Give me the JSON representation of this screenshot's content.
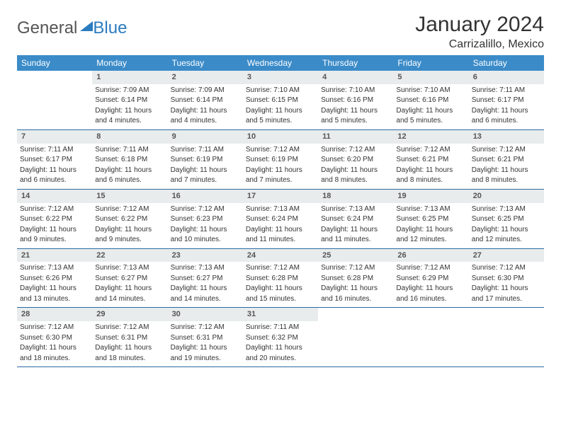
{
  "colors": {
    "header_bg": "#3b8bc8",
    "header_text": "#ffffff",
    "daynum_bg": "#e9eced",
    "daynum_text": "#555555",
    "border": "#2b6aa3",
    "body_text": "#333333",
    "accent": "#2b7bbf"
  },
  "typography": {
    "title_fontsize": 30,
    "location_fontsize": 16,
    "weekday_fontsize": 12,
    "daynum_fontsize": 11,
    "body_fontsize": 10
  },
  "logo": {
    "text1": "General",
    "text2": "Blue"
  },
  "title": "January 2024",
  "location": "Carrizalillo, Mexico",
  "weekdays": [
    "Sunday",
    "Monday",
    "Tuesday",
    "Wednesday",
    "Thursday",
    "Friday",
    "Saturday"
  ],
  "weeks": [
    [
      {
        "n": "",
        "sr": "",
        "ss": "",
        "dl1": "",
        "dl2": ""
      },
      {
        "n": "1",
        "sr": "Sunrise: 7:09 AM",
        "ss": "Sunset: 6:14 PM",
        "dl1": "Daylight: 11 hours",
        "dl2": "and 4 minutes."
      },
      {
        "n": "2",
        "sr": "Sunrise: 7:09 AM",
        "ss": "Sunset: 6:14 PM",
        "dl1": "Daylight: 11 hours",
        "dl2": "and 4 minutes."
      },
      {
        "n": "3",
        "sr": "Sunrise: 7:10 AM",
        "ss": "Sunset: 6:15 PM",
        "dl1": "Daylight: 11 hours",
        "dl2": "and 5 minutes."
      },
      {
        "n": "4",
        "sr": "Sunrise: 7:10 AM",
        "ss": "Sunset: 6:16 PM",
        "dl1": "Daylight: 11 hours",
        "dl2": "and 5 minutes."
      },
      {
        "n": "5",
        "sr": "Sunrise: 7:10 AM",
        "ss": "Sunset: 6:16 PM",
        "dl1": "Daylight: 11 hours",
        "dl2": "and 5 minutes."
      },
      {
        "n": "6",
        "sr": "Sunrise: 7:11 AM",
        "ss": "Sunset: 6:17 PM",
        "dl1": "Daylight: 11 hours",
        "dl2": "and 6 minutes."
      }
    ],
    [
      {
        "n": "7",
        "sr": "Sunrise: 7:11 AM",
        "ss": "Sunset: 6:17 PM",
        "dl1": "Daylight: 11 hours",
        "dl2": "and 6 minutes."
      },
      {
        "n": "8",
        "sr": "Sunrise: 7:11 AM",
        "ss": "Sunset: 6:18 PM",
        "dl1": "Daylight: 11 hours",
        "dl2": "and 6 minutes."
      },
      {
        "n": "9",
        "sr": "Sunrise: 7:11 AM",
        "ss": "Sunset: 6:19 PM",
        "dl1": "Daylight: 11 hours",
        "dl2": "and 7 minutes."
      },
      {
        "n": "10",
        "sr": "Sunrise: 7:12 AM",
        "ss": "Sunset: 6:19 PM",
        "dl1": "Daylight: 11 hours",
        "dl2": "and 7 minutes."
      },
      {
        "n": "11",
        "sr": "Sunrise: 7:12 AM",
        "ss": "Sunset: 6:20 PM",
        "dl1": "Daylight: 11 hours",
        "dl2": "and 8 minutes."
      },
      {
        "n": "12",
        "sr": "Sunrise: 7:12 AM",
        "ss": "Sunset: 6:21 PM",
        "dl1": "Daylight: 11 hours",
        "dl2": "and 8 minutes."
      },
      {
        "n": "13",
        "sr": "Sunrise: 7:12 AM",
        "ss": "Sunset: 6:21 PM",
        "dl1": "Daylight: 11 hours",
        "dl2": "and 8 minutes."
      }
    ],
    [
      {
        "n": "14",
        "sr": "Sunrise: 7:12 AM",
        "ss": "Sunset: 6:22 PM",
        "dl1": "Daylight: 11 hours",
        "dl2": "and 9 minutes."
      },
      {
        "n": "15",
        "sr": "Sunrise: 7:12 AM",
        "ss": "Sunset: 6:22 PM",
        "dl1": "Daylight: 11 hours",
        "dl2": "and 9 minutes."
      },
      {
        "n": "16",
        "sr": "Sunrise: 7:12 AM",
        "ss": "Sunset: 6:23 PM",
        "dl1": "Daylight: 11 hours",
        "dl2": "and 10 minutes."
      },
      {
        "n": "17",
        "sr": "Sunrise: 7:13 AM",
        "ss": "Sunset: 6:24 PM",
        "dl1": "Daylight: 11 hours",
        "dl2": "and 11 minutes."
      },
      {
        "n": "18",
        "sr": "Sunrise: 7:13 AM",
        "ss": "Sunset: 6:24 PM",
        "dl1": "Daylight: 11 hours",
        "dl2": "and 11 minutes."
      },
      {
        "n": "19",
        "sr": "Sunrise: 7:13 AM",
        "ss": "Sunset: 6:25 PM",
        "dl1": "Daylight: 11 hours",
        "dl2": "and 12 minutes."
      },
      {
        "n": "20",
        "sr": "Sunrise: 7:13 AM",
        "ss": "Sunset: 6:25 PM",
        "dl1": "Daylight: 11 hours",
        "dl2": "and 12 minutes."
      }
    ],
    [
      {
        "n": "21",
        "sr": "Sunrise: 7:13 AM",
        "ss": "Sunset: 6:26 PM",
        "dl1": "Daylight: 11 hours",
        "dl2": "and 13 minutes."
      },
      {
        "n": "22",
        "sr": "Sunrise: 7:13 AM",
        "ss": "Sunset: 6:27 PM",
        "dl1": "Daylight: 11 hours",
        "dl2": "and 14 minutes."
      },
      {
        "n": "23",
        "sr": "Sunrise: 7:13 AM",
        "ss": "Sunset: 6:27 PM",
        "dl1": "Daylight: 11 hours",
        "dl2": "and 14 minutes."
      },
      {
        "n": "24",
        "sr": "Sunrise: 7:12 AM",
        "ss": "Sunset: 6:28 PM",
        "dl1": "Daylight: 11 hours",
        "dl2": "and 15 minutes."
      },
      {
        "n": "25",
        "sr": "Sunrise: 7:12 AM",
        "ss": "Sunset: 6:28 PM",
        "dl1": "Daylight: 11 hours",
        "dl2": "and 16 minutes."
      },
      {
        "n": "26",
        "sr": "Sunrise: 7:12 AM",
        "ss": "Sunset: 6:29 PM",
        "dl1": "Daylight: 11 hours",
        "dl2": "and 16 minutes."
      },
      {
        "n": "27",
        "sr": "Sunrise: 7:12 AM",
        "ss": "Sunset: 6:30 PM",
        "dl1": "Daylight: 11 hours",
        "dl2": "and 17 minutes."
      }
    ],
    [
      {
        "n": "28",
        "sr": "Sunrise: 7:12 AM",
        "ss": "Sunset: 6:30 PM",
        "dl1": "Daylight: 11 hours",
        "dl2": "and 18 minutes."
      },
      {
        "n": "29",
        "sr": "Sunrise: 7:12 AM",
        "ss": "Sunset: 6:31 PM",
        "dl1": "Daylight: 11 hours",
        "dl2": "and 18 minutes."
      },
      {
        "n": "30",
        "sr": "Sunrise: 7:12 AM",
        "ss": "Sunset: 6:31 PM",
        "dl1": "Daylight: 11 hours",
        "dl2": "and 19 minutes."
      },
      {
        "n": "31",
        "sr": "Sunrise: 7:11 AM",
        "ss": "Sunset: 6:32 PM",
        "dl1": "Daylight: 11 hours",
        "dl2": "and 20 minutes."
      },
      {
        "n": "",
        "sr": "",
        "ss": "",
        "dl1": "",
        "dl2": ""
      },
      {
        "n": "",
        "sr": "",
        "ss": "",
        "dl1": "",
        "dl2": ""
      },
      {
        "n": "",
        "sr": "",
        "ss": "",
        "dl1": "",
        "dl2": ""
      }
    ]
  ]
}
